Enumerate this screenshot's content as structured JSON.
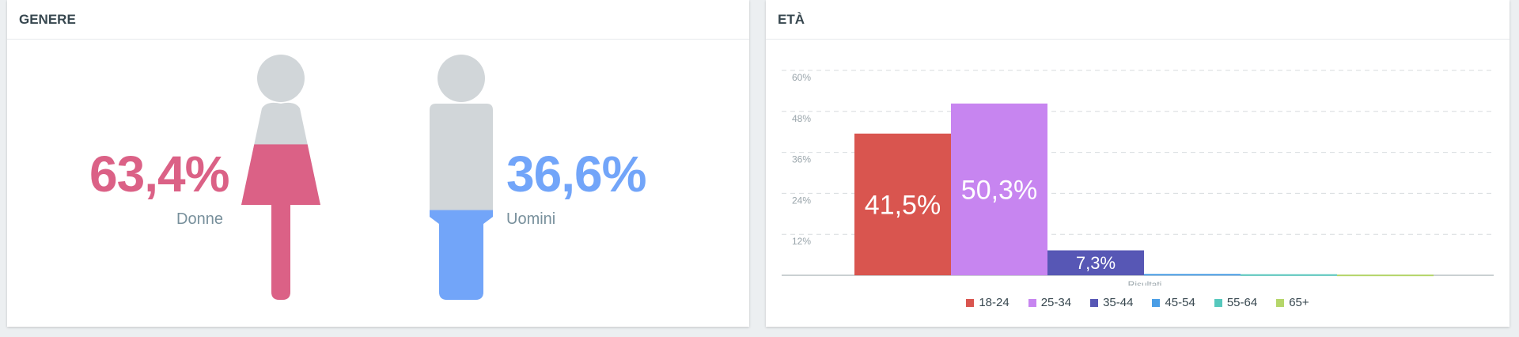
{
  "gender_panel": {
    "title": "GENERE",
    "female": {
      "percent": "63,4%",
      "label": "Donne",
      "value": 63.4,
      "color": "#db6186"
    },
    "male": {
      "percent": "36,6%",
      "label": "Uomini",
      "value": 36.6,
      "color": "#72a5f9"
    },
    "figure_gray": "#d1d6d9"
  },
  "age_panel": {
    "title": "ETÀ"
  },
  "chart_data": {
    "type": "bar",
    "xlabel": "Risultati",
    "ylim": [
      0,
      60
    ],
    "yticks": [
      "12%",
      "24%",
      "36%",
      "48%",
      "60%"
    ],
    "ytick_values": [
      12,
      24,
      36,
      48,
      60
    ],
    "grid": true,
    "legend_position": "bottom",
    "series": [
      {
        "name": "18-24",
        "value": 41.5,
        "label": "41,5%",
        "color": "#d9554f"
      },
      {
        "name": "25-34",
        "value": 50.3,
        "label": "50,3%",
        "color": "#c785f0"
      },
      {
        "name": "35-44",
        "value": 7.3,
        "label": "7,3%",
        "color": "#5757b5"
      },
      {
        "name": "45-54",
        "value": 0.4,
        "label": "",
        "color": "#4a9ee6"
      },
      {
        "name": "55-64",
        "value": 0.3,
        "label": "",
        "color": "#56c8bd"
      },
      {
        "name": "65+",
        "value": 0.2,
        "label": "",
        "color": "#b5d66a"
      }
    ]
  }
}
